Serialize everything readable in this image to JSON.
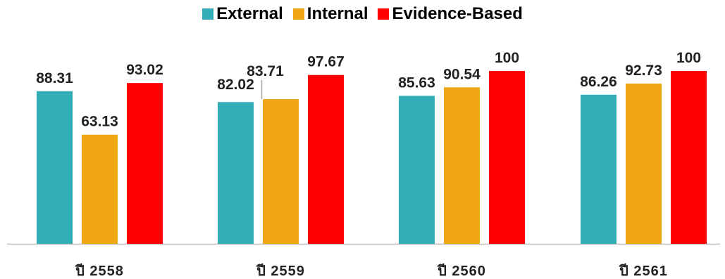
{
  "chart_data": {
    "type": "bar",
    "categories": [
      "ปี 2558",
      "ปี 2559",
      "ปี 2560",
      "ปี 2561"
    ],
    "series": [
      {
        "name": "External",
        "color": "#33AEB7",
        "values": [
          88.31,
          82.02,
          85.63,
          86.26
        ]
      },
      {
        "name": "Internal",
        "color": "#F0A614",
        "values": [
          63.13,
          83.71,
          90.54,
          92.73
        ]
      },
      {
        "name": "Evidence-Based",
        "color": "#FF0000",
        "values": [
          93.02,
          97.67,
          100,
          100
        ]
      }
    ],
    "data_labels": [
      [
        "88.31",
        "82.02",
        "85.63",
        "86.26"
      ],
      [
        "63.13",
        "83.71",
        "90.54",
        "92.73"
      ],
      [
        "93.02",
        "97.67",
        "100",
        "100"
      ]
    ],
    "legend_position": "top-center",
    "grid": false,
    "ylim": [
      0,
      120
    ]
  }
}
